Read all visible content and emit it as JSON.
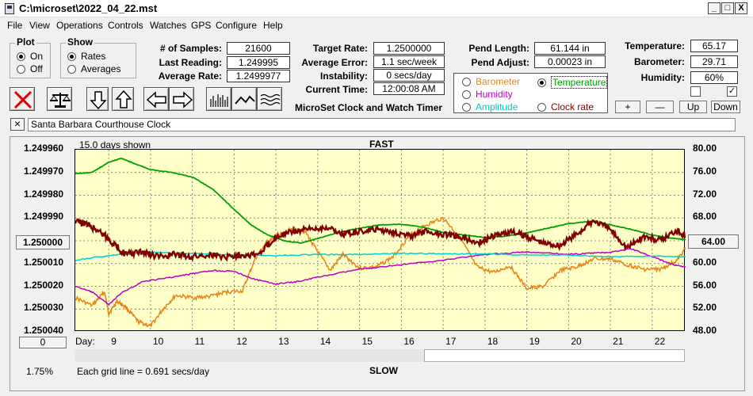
{
  "window": {
    "title": "C:\\microset\\2022_04_22.mst",
    "btn_min": "_",
    "btn_max": "□",
    "btn_close": "X"
  },
  "menu": [
    "File",
    "View",
    "Operations",
    "Controls",
    "Watches",
    "GPS",
    "Configure",
    "Help"
  ],
  "plot_group": {
    "label": "Plot",
    "on": "On",
    "off": "Off",
    "selected": "On"
  },
  "show_group": {
    "label": "Show",
    "rates": "Rates",
    "averages": "Averages",
    "selected": "Rates"
  },
  "stats": {
    "samples_label": "# of Samples:",
    "samples": "21600",
    "last_label": "Last Reading:",
    "last": "1.249995",
    "avg_rate_label": "Average Rate:",
    "avg_rate": "1.2499977",
    "target_label": "Target Rate:",
    "target": "1.2500000",
    "avg_err_label": "Average Error:",
    "avg_err": "1.1 sec/week",
    "instab_label": "Instability:",
    "instab": "0 secs/day",
    "time_label": "Current Time:",
    "time": "12:00:08 AM",
    "pend_len_label": "Pend Length:",
    "pend_len": "61.144 in",
    "pend_adj_label": "Pend Adjust:",
    "pend_adj": "0.00023 in",
    "temp_label": "Temperature:",
    "temp": "65.17",
    "baro_label": "Barometer:",
    "baro": "29.71",
    "hum_label": "Humidity:",
    "hum": "60%"
  },
  "app_title": "MicroSet Clock and Watch Timer",
  "series_select": {
    "barometer": "Barometer",
    "temperature": "Temperature",
    "humidity": "Humidity",
    "amplitude": "Amplitude",
    "clock_rate": "Clock rate",
    "selected": "Temperature",
    "colors": {
      "barometer": "#e8851a",
      "temperature": "#00a000",
      "humidity": "#c000c0",
      "amplitude": "#00d0d0",
      "clock_rate": "#800000"
    }
  },
  "adjust_buttons": {
    "plus": "+",
    "minus": "—",
    "up": "Up",
    "down": "Down"
  },
  "clock_name": "Santa Barbara Courthouse Clock",
  "clear_btn": "×",
  "plot": {
    "days_shown": "15.0 days shown",
    "top_label": "FAST",
    "bottom_label": "SLOW",
    "left_center_btn": "1.250000",
    "right_center_btn": "64.00",
    "bottom_left_btn": "0",
    "scale_pct": "1.75%",
    "grid_note": "Each grid line = 0.691 secs/day",
    "x_prefix": "Day:"
  },
  "chart_data": {
    "type": "line",
    "y_left_ticks": [
      "1.249960",
      "1.249970",
      "1.249980",
      "1.249990",
      "1.250000",
      "1.250010",
      "1.250020",
      "1.250030",
      "1.250040"
    ],
    "y_right_ticks": [
      "80.00",
      "76.00",
      "72.00",
      "68.00",
      "64.00",
      "60.00",
      "56.00",
      "52.00",
      "48.00"
    ],
    "x_ticks": [
      "9",
      "10",
      "11",
      "12",
      "13",
      "14",
      "15",
      "16",
      "17",
      "18",
      "19",
      "20",
      "21",
      "22"
    ],
    "ylim_left": [
      1.24996,
      1.25004
    ],
    "ylim_right": [
      48,
      80
    ],
    "xlim": [
      8.2,
      22.8
    ],
    "series": [
      {
        "key": "temperature",
        "x": [
          8.2,
          8.6,
          9.0,
          9.3,
          9.6,
          10.0,
          10.5,
          11.0,
          11.5,
          12.0,
          12.4,
          12.8,
          13.2,
          13.6,
          14.0,
          14.5,
          15.0,
          15.5,
          16.0,
          16.5,
          17.0,
          17.5,
          18.0,
          18.5,
          19.0,
          19.5,
          20.0,
          20.5,
          21.0,
          21.5,
          22.0,
          22.4,
          22.8
        ],
        "y": [
          75.8,
          76.0,
          77.8,
          78.5,
          77.6,
          76.5,
          76.0,
          75.2,
          73.0,
          69.5,
          66.8,
          65.0,
          64.0,
          63.6,
          64.4,
          65.5,
          66.2,
          66.8,
          66.9,
          66.4,
          65.5,
          65.0,
          64.6,
          64.8,
          65.4,
          66.2,
          67.0,
          67.4,
          66.8,
          66.0,
          65.0,
          64.5,
          64.2
        ]
      },
      {
        "key": "clock_rate",
        "x": [
          8.2,
          8.5,
          8.8,
          9.1,
          9.4,
          9.8,
          10.2,
          10.6,
          11.0,
          11.4,
          11.8,
          12.2,
          12.6,
          13.0,
          13.4,
          13.8,
          14.2,
          14.6,
          15.0,
          15.4,
          15.8,
          16.2,
          16.6,
          17.0,
          17.4,
          17.8,
          18.2,
          18.6,
          19.0,
          19.4,
          19.8,
          20.2,
          20.6,
          21.0,
          21.4,
          21.8,
          22.2,
          22.6,
          22.8
        ],
        "y": [
          1.249991,
          1.249993,
          1.249996,
          1.250001,
          1.250006,
          1.250005,
          1.250007,
          1.250006,
          1.250007,
          1.250006,
          1.250007,
          1.250006,
          1.250006,
          1.249998,
          1.249996,
          1.249995,
          1.249994,
          1.249997,
          1.249996,
          1.249995,
          1.249996,
          1.249998,
          1.249996,
          1.249997,
          1.249998,
          1.250001,
          1.249998,
          1.249996,
          1.249998,
          1.250001,
          1.250002,
          1.249997,
          1.249991,
          1.249995,
          1.250003,
          1.249998,
          1.25,
          1.249995,
          1.249998
        ]
      },
      {
        "key": "amplitude",
        "x": [
          8.2,
          9.0,
          10.0,
          11.0,
          12.0,
          13.0,
          14.0,
          15.0,
          16.0,
          17.0,
          18.0,
          19.0,
          20.0,
          21.0,
          22.0,
          22.8
        ],
        "y": [
          60.6,
          61.4,
          62.0,
          61.8,
          61.5,
          61.4,
          61.6,
          61.6,
          61.8,
          61.7,
          61.7,
          61.5,
          61.5,
          61.2,
          61.3,
          61.2
        ]
      },
      {
        "key": "humidity",
        "x": [
          8.2,
          8.6,
          9.0,
          9.3,
          9.8,
          10.5,
          11.0,
          11.5,
          12.0,
          12.5,
          13.0,
          13.5,
          14.0,
          15.0,
          16.0,
          17.0,
          18.0,
          19.0,
          20.0,
          20.5,
          21.0,
          21.5,
          22.0,
          22.5,
          22.8
        ],
        "y": [
          56.0,
          55.0,
          52.8,
          54.8,
          56.8,
          57.6,
          58.2,
          58.8,
          58.6,
          57.2,
          56.4,
          56.8,
          57.6,
          59.0,
          59.8,
          60.6,
          61.6,
          62.0,
          61.6,
          61.8,
          62.0,
          62.6,
          61.2,
          59.8,
          59.4
        ]
      },
      {
        "key": "barometer",
        "x": [
          8.2,
          8.6,
          8.9,
          9.0,
          9.2,
          9.4,
          9.7,
          10.0,
          10.3,
          10.6,
          11.0,
          11.4,
          11.8,
          12.2,
          12.5,
          12.8,
          13.1,
          13.4,
          13.7,
          14.0,
          14.3,
          14.6,
          15.0,
          15.4,
          15.8,
          16.2,
          16.6,
          17.0,
          17.4,
          17.8,
          18.2,
          18.6,
          19.0,
          19.4,
          19.8,
          20.2,
          20.6,
          21.0,
          21.4,
          21.8,
          22.2,
          22.6,
          22.8
        ],
        "y": [
          54.0,
          52.6,
          55.0,
          51.2,
          53.4,
          52.4,
          49.8,
          49.0,
          52.0,
          54.4,
          54.0,
          54.2,
          55.0,
          55.2,
          60.8,
          64.0,
          65.0,
          66.2,
          65.6,
          62.0,
          58.8,
          61.6,
          59.2,
          59.4,
          61.2,
          65.0,
          66.8,
          68.0,
          64.6,
          59.4,
          58.4,
          59.6,
          55.6,
          56.0,
          58.8,
          59.4,
          60.8,
          60.8,
          59.8,
          59.0,
          59.0,
          60.6,
          62.8
        ]
      }
    ]
  }
}
